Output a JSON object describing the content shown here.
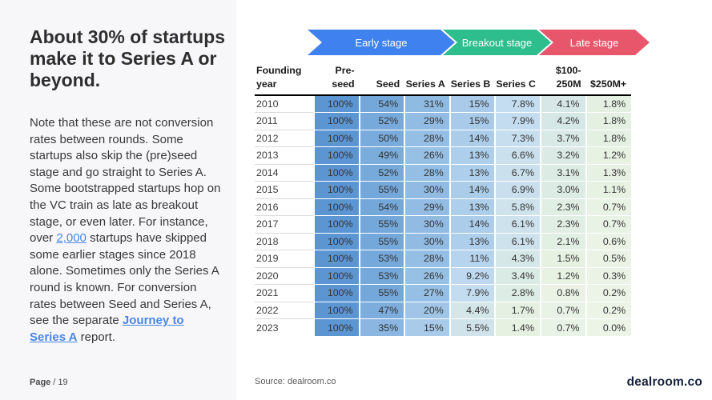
{
  "left_panel": {
    "title": "About 30% of startups make it to Series A or beyond.",
    "body_pre": "Note that these are not conversion rates between rounds. Some startups also skip the (pre)seed stage and go straight to Series A. Some bootstrapped startups hop on the VC train as late as breakout stage, or even later. For instance, over ",
    "link_2000": "2,000",
    "body_mid": " startups have skipped some earlier stages since 2018 alone. Sometimes only the Series A round is known. For conversion rates between Seed and Series A, see the separate ",
    "link_journey": "Journey to Series A",
    "body_post": " report.",
    "page_label": "Page",
    "page_number": "/ 19",
    "link_color": "#4a86e8"
  },
  "stage_banner": {
    "stages": [
      {
        "label": "Early stage",
        "color": "#4081f0"
      },
      {
        "label": "Breakout stage",
        "color": "#2ebd8d"
      },
      {
        "label": "Late stage",
        "color": "#e8566b"
      }
    ]
  },
  "chart_data": {
    "type": "heatmap",
    "title": "Share of startups reaching each funding stage, by founding year",
    "unit": "%",
    "columns": [
      "Founding year",
      "Pre-seed",
      "Seed",
      "Series A",
      "Series B",
      "Series C",
      "$100-250M",
      "$250M+"
    ],
    "header_lines": [
      [
        "Founding",
        "year"
      ],
      [
        "",
        "Pre-seed"
      ],
      [
        "",
        "Seed"
      ],
      [
        "",
        "Series A"
      ],
      [
        "",
        "Series B"
      ],
      [
        "",
        "Series C"
      ],
      [
        "$100-",
        "250M"
      ],
      [
        "",
        "$250M+"
      ]
    ],
    "rows": [
      {
        "year": "2010",
        "values": [
          100,
          54,
          31,
          15,
          7.8,
          4.1,
          1.8
        ]
      },
      {
        "year": "2011",
        "values": [
          100,
          52,
          29,
          15,
          7.9,
          4.2,
          1.8
        ]
      },
      {
        "year": "2012",
        "values": [
          100,
          50,
          28,
          14,
          7.3,
          3.7,
          1.8
        ]
      },
      {
        "year": "2013",
        "values": [
          100,
          49,
          26,
          13,
          6.6,
          3.2,
          1.2
        ]
      },
      {
        "year": "2014",
        "values": [
          100,
          52,
          28,
          13,
          6.7,
          3.1,
          1.3
        ]
      },
      {
        "year": "2015",
        "values": [
          100,
          55,
          30,
          14,
          6.9,
          3.0,
          1.1
        ]
      },
      {
        "year": "2016",
        "values": [
          100,
          54,
          29,
          13,
          5.8,
          2.3,
          0.7
        ]
      },
      {
        "year": "2017",
        "values": [
          100,
          55,
          30,
          14,
          6.1,
          2.3,
          0.7
        ]
      },
      {
        "year": "2018",
        "values": [
          100,
          55,
          30,
          13,
          6.1,
          2.1,
          0.6
        ]
      },
      {
        "year": "2019",
        "values": [
          100,
          53,
          28,
          11,
          4.3,
          1.5,
          0.5
        ]
      },
      {
        "year": "2020",
        "values": [
          100,
          53,
          26,
          9.2,
          3.4,
          1.2,
          0.3
        ]
      },
      {
        "year": "2021",
        "values": [
          100,
          55,
          27,
          7.9,
          2.8,
          0.8,
          0.2
        ]
      },
      {
        "year": "2022",
        "values": [
          100,
          47,
          20,
          4.4,
          1.7,
          0.7,
          0.2
        ]
      },
      {
        "year": "2023",
        "values": [
          100,
          35,
          15,
          5.5,
          1.4,
          0.7,
          0.0
        ]
      }
    ],
    "color_scale": {
      "stops": [
        [
          0,
          "#ecf4e7"
        ],
        [
          1.5,
          "#e6f1e2"
        ],
        [
          3,
          "#dcebe4"
        ],
        [
          4.5,
          "#d5e6e9"
        ],
        [
          6,
          "#cde2ec"
        ],
        [
          8,
          "#c3dcf0"
        ],
        [
          10,
          "#bad6ee"
        ],
        [
          13,
          "#aecfeb"
        ],
        [
          15,
          "#a9cbe9"
        ],
        [
          20,
          "#a0c5e7"
        ],
        [
          26,
          "#97c0e5"
        ],
        [
          31,
          "#8fbae2"
        ],
        [
          35,
          "#8ab6e1"
        ],
        [
          47,
          "#7caddd"
        ],
        [
          55,
          "#74a7da"
        ],
        [
          100,
          "#5b96d3"
        ]
      ]
    }
  },
  "footer": {
    "source": "Source: dealroom.co",
    "logo": "dealroom.co"
  }
}
